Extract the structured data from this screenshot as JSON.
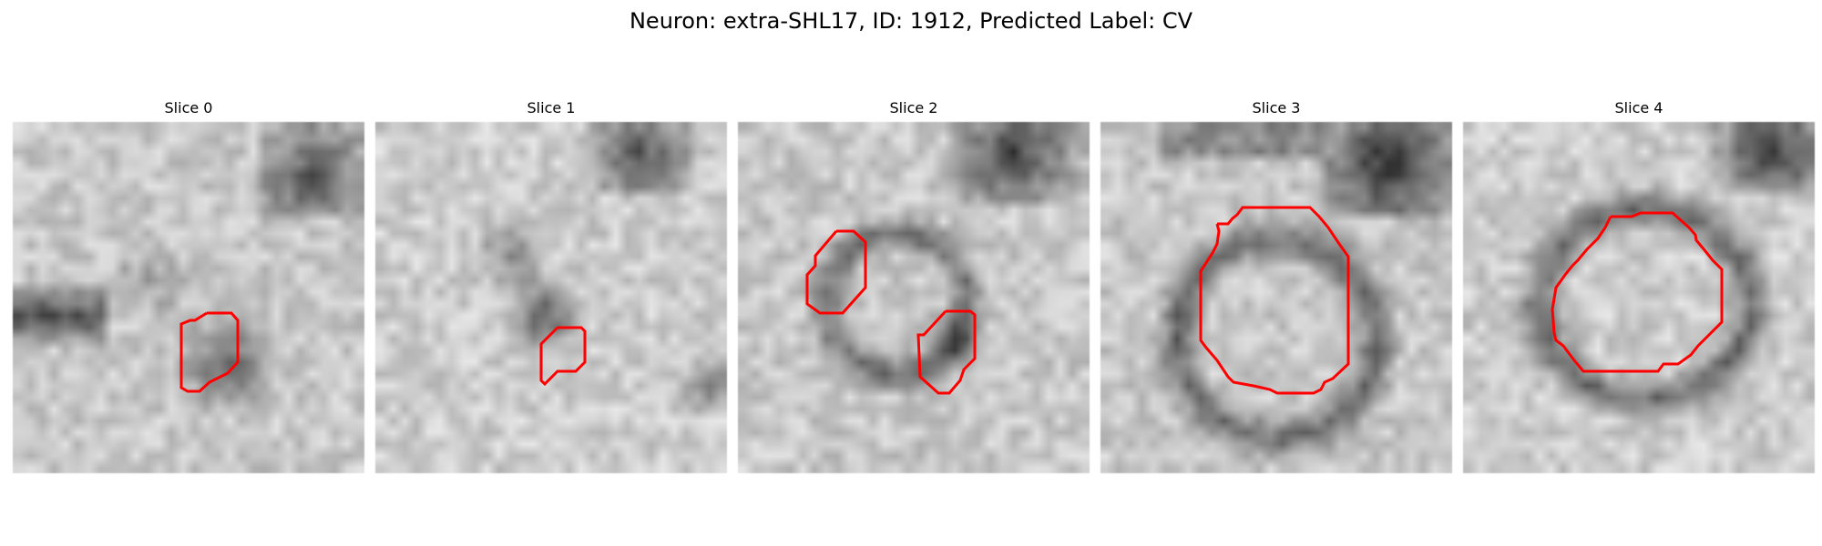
{
  "figure": {
    "title": "Neuron: extra-SHL17, ID: 1912, Predicted Label: CV"
  },
  "panels": [
    {
      "title": "Slice 0"
    },
    {
      "title": "Slice 1"
    },
    {
      "title": "Slice 2"
    },
    {
      "title": "Slice 3"
    },
    {
      "title": "Slice 4"
    }
  ],
  "colors": {
    "contour": "#ff0000",
    "background": "#ffffff"
  }
}
